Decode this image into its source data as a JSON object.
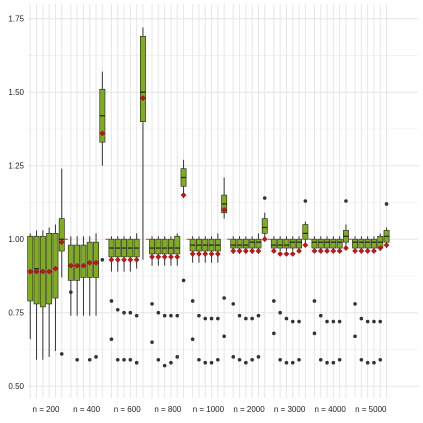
{
  "chart_data": {
    "type": "boxplot",
    "title": "",
    "xlabel": "",
    "ylabel": "",
    "ylim": [
      0.46,
      1.8
    ],
    "y_ticks": [
      0.5,
      0.75,
      1.0,
      1.25,
      1.5,
      1.75
    ],
    "y_tick_labels": [
      "0.50",
      "0.75",
      "1.00",
      "1.25",
      "1.50",
      "1.75"
    ],
    "reference_line": 1.0,
    "grid": true,
    "legend": "none",
    "boxes_per_group": 6,
    "colors": {
      "box": "#7fae1a",
      "whisker": "#333333",
      "median": "#222222",
      "mean_marker": "#cc1111",
      "reference": "#dd2222",
      "outlier": "#333333",
      "grid": "#e6e6e6"
    },
    "groups": [
      {
        "label": "n = 200",
        "boxes": [
          {
            "min": 0.66,
            "q1": 0.79,
            "median": 0.89,
            "q3": 1.01,
            "max": 1.02,
            "mean": 0.89,
            "outliers": []
          },
          {
            "min": 0.59,
            "q1": 0.78,
            "median": 0.9,
            "q3": 1.01,
            "max": 1.03,
            "mean": 0.89,
            "outliers": []
          },
          {
            "min": 0.59,
            "q1": 0.77,
            "median": 0.89,
            "q3": 1.01,
            "max": 1.03,
            "mean": 0.89,
            "outliers": []
          },
          {
            "min": 0.6,
            "q1": 0.78,
            "median": 0.89,
            "q3": 1.02,
            "max": 1.04,
            "mean": 0.89,
            "outliers": []
          },
          {
            "min": 0.62,
            "q1": 0.8,
            "median": 0.9,
            "q3": 1.02,
            "max": 1.05,
            "mean": 0.9,
            "outliers": []
          },
          {
            "min": 0.87,
            "q1": 0.96,
            "median": 1.0,
            "q3": 1.07,
            "max": 1.24,
            "mean": 0.99,
            "outliers": [
              0.61
            ]
          }
        ]
      },
      {
        "label": "n = 400",
        "boxes": [
          {
            "min": 0.74,
            "q1": 0.86,
            "median": 0.91,
            "q3": 0.98,
            "max": 1.01,
            "mean": 0.91,
            "outliers": [
              0.82
            ]
          },
          {
            "min": 0.74,
            "q1": 0.86,
            "median": 0.91,
            "q3": 0.98,
            "max": 1.01,
            "mean": 0.91,
            "outliers": [
              0.59
            ]
          },
          {
            "min": 0.74,
            "q1": 0.87,
            "median": 0.91,
            "q3": 0.98,
            "max": 1.01,
            "mean": 0.91,
            "outliers": []
          },
          {
            "min": 0.74,
            "q1": 0.87,
            "median": 0.92,
            "q3": 0.99,
            "max": 1.01,
            "mean": 0.92,
            "outliers": [
              0.59
            ]
          },
          {
            "min": 0.74,
            "q1": 0.87,
            "median": 0.92,
            "q3": 0.99,
            "max": 1.02,
            "mean": 0.92,
            "outliers": [
              0.6
            ]
          },
          {
            "min": 1.25,
            "q1": 1.33,
            "median": 1.42,
            "q3": 1.51,
            "max": 1.57,
            "mean": 1.36,
            "outliers": [
              0.93
            ]
          }
        ]
      },
      {
        "label": "n = 600",
        "boxes": [
          {
            "min": 0.89,
            "q1": 0.94,
            "median": 0.97,
            "q3": 1.0,
            "max": 1.01,
            "mean": 0.93,
            "outliers": [
              0.79,
              0.66
            ]
          },
          {
            "min": 0.89,
            "q1": 0.94,
            "median": 0.97,
            "q3": 1.0,
            "max": 1.01,
            "mean": 0.93,
            "outliers": [
              0.76,
              0.59
            ]
          },
          {
            "min": 0.89,
            "q1": 0.94,
            "median": 0.97,
            "q3": 1.0,
            "max": 1.01,
            "mean": 0.93,
            "outliers": [
              0.75,
              0.59
            ]
          },
          {
            "min": 0.89,
            "q1": 0.94,
            "median": 0.97,
            "q3": 1.0,
            "max": 1.01,
            "mean": 0.93,
            "outliers": [
              0.75,
              0.59
            ]
          },
          {
            "min": 0.9,
            "q1": 0.94,
            "median": 0.97,
            "q3": 1.0,
            "max": 1.02,
            "mean": 0.93,
            "outliers": [
              0.74,
              0.58
            ]
          },
          {
            "min": 0.93,
            "q1": 1.4,
            "median": 1.5,
            "q3": 1.69,
            "max": 1.72,
            "mean": 1.48,
            "outliers": []
          }
        ]
      },
      {
        "label": "n = 800",
        "boxes": [
          {
            "min": 0.91,
            "q1": 0.95,
            "median": 0.97,
            "q3": 1.0,
            "max": 1.01,
            "mean": 0.94,
            "outliers": [
              0.78,
              0.65
            ]
          },
          {
            "min": 0.91,
            "q1": 0.95,
            "median": 0.97,
            "q3": 1.0,
            "max": 1.01,
            "mean": 0.94,
            "outliers": [
              0.75,
              0.59
            ]
          },
          {
            "min": 0.91,
            "q1": 0.95,
            "median": 0.97,
            "q3": 1.0,
            "max": 1.01,
            "mean": 0.94,
            "outliers": [
              0.74,
              0.57
            ]
          },
          {
            "min": 0.91,
            "q1": 0.95,
            "median": 0.97,
            "q3": 1.0,
            "max": 1.01,
            "mean": 0.94,
            "outliers": [
              0.74,
              0.58
            ]
          },
          {
            "min": 0.91,
            "q1": 0.95,
            "median": 0.97,
            "q3": 1.01,
            "max": 1.02,
            "mean": 0.94,
            "outliers": [
              0.74,
              0.6
            ]
          },
          {
            "min": 1.14,
            "q1": 1.18,
            "median": 1.21,
            "q3": 1.24,
            "max": 1.27,
            "mean": 1.15,
            "outliers": [
              0.86
            ]
          }
        ]
      },
      {
        "label": "n = 1000",
        "boxes": [
          {
            "min": 0.92,
            "q1": 0.96,
            "median": 0.98,
            "q3": 1.0,
            "max": 1.01,
            "mean": 0.95,
            "outliers": [
              0.79,
              0.66
            ]
          },
          {
            "min": 0.92,
            "q1": 0.96,
            "median": 0.98,
            "q3": 1.0,
            "max": 1.01,
            "mean": 0.95,
            "outliers": [
              0.74,
              0.59
            ]
          },
          {
            "min": 0.92,
            "q1": 0.96,
            "median": 0.98,
            "q3": 1.0,
            "max": 1.01,
            "mean": 0.95,
            "outliers": [
              0.73,
              0.58
            ]
          },
          {
            "min": 0.92,
            "q1": 0.96,
            "median": 0.98,
            "q3": 1.0,
            "max": 1.01,
            "mean": 0.95,
            "outliers": [
              0.73,
              0.58
            ]
          },
          {
            "min": 0.92,
            "q1": 0.96,
            "median": 0.98,
            "q3": 1.0,
            "max": 1.02,
            "mean": 0.95,
            "outliers": [
              0.73,
              0.59
            ]
          },
          {
            "min": 1.07,
            "q1": 1.09,
            "median": 1.12,
            "q3": 1.15,
            "max": 1.21,
            "mean": 1.1,
            "outliers": [
              0.8,
              0.67
            ]
          }
        ]
      },
      {
        "label": "n = 2000",
        "boxes": [
          {
            "min": 0.95,
            "q1": 0.97,
            "median": 0.98,
            "q3": 1.0,
            "max": 1.01,
            "mean": 0.96,
            "outliers": [
              0.78,
              0.6
            ]
          },
          {
            "min": 0.95,
            "q1": 0.97,
            "median": 0.98,
            "q3": 1.0,
            "max": 1.01,
            "mean": 0.96,
            "outliers": [
              0.74,
              0.59
            ]
          },
          {
            "min": 0.95,
            "q1": 0.97,
            "median": 0.98,
            "q3": 1.0,
            "max": 1.01,
            "mean": 0.96,
            "outliers": [
              0.73,
              0.58
            ]
          },
          {
            "min": 0.95,
            "q1": 0.97,
            "median": 0.99,
            "q3": 1.0,
            "max": 1.01,
            "mean": 0.96,
            "outliers": [
              0.73,
              0.59
            ]
          },
          {
            "min": 0.95,
            "q1": 0.97,
            "median": 0.99,
            "q3": 1.0,
            "max": 1.02,
            "mean": 0.96,
            "outliers": [
              0.74,
              0.6
            ]
          },
          {
            "min": 1.0,
            "q1": 1.02,
            "median": 1.04,
            "q3": 1.07,
            "max": 1.09,
            "mean": 1.0,
            "outliers": [
              1.14
            ]
          }
        ]
      },
      {
        "label": "n = 3000",
        "boxes": [
          {
            "min": 0.96,
            "q1": 0.97,
            "median": 0.98,
            "q3": 1.0,
            "max": 1.01,
            "mean": 0.96,
            "outliers": [
              0.79,
              0.68
            ]
          },
          {
            "min": 0.96,
            "q1": 0.97,
            "median": 0.98,
            "q3": 1.0,
            "max": 1.01,
            "mean": 0.95,
            "outliers": [
              0.75,
              0.59
            ]
          },
          {
            "min": 0.96,
            "q1": 0.97,
            "median": 0.98,
            "q3": 1.0,
            "max": 1.01,
            "mean": 0.95,
            "outliers": [
              0.73,
              0.58
            ]
          },
          {
            "min": 0.96,
            "q1": 0.97,
            "median": 0.99,
            "q3": 1.0,
            "max": 1.01,
            "mean": 0.95,
            "outliers": [
              0.72,
              0.58
            ]
          },
          {
            "min": 0.96,
            "q1": 0.97,
            "median": 0.99,
            "q3": 1.0,
            "max": 1.01,
            "mean": 0.96,
            "outliers": [
              0.72,
              0.59
            ]
          },
          {
            "min": 0.98,
            "q1": 1.0,
            "median": 1.02,
            "q3": 1.05,
            "max": 1.06,
            "mean": 0.98,
            "outliers": [
              1.13
            ]
          }
        ]
      },
      {
        "label": "n = 4000",
        "boxes": [
          {
            "min": 0.96,
            "q1": 0.97,
            "median": 0.99,
            "q3": 1.0,
            "max": 1.01,
            "mean": 0.96,
            "outliers": [
              0.79,
              0.68
            ]
          },
          {
            "min": 0.96,
            "q1": 0.97,
            "median": 0.99,
            "q3": 1.0,
            "max": 1.01,
            "mean": 0.96,
            "outliers": [
              0.74,
              0.59
            ]
          },
          {
            "min": 0.96,
            "q1": 0.97,
            "median": 0.99,
            "q3": 1.0,
            "max": 1.01,
            "mean": 0.96,
            "outliers": [
              0.72,
              0.58
            ]
          },
          {
            "min": 0.96,
            "q1": 0.97,
            "median": 0.99,
            "q3": 1.0,
            "max": 1.01,
            "mean": 0.96,
            "outliers": [
              0.72,
              0.58
            ]
          },
          {
            "min": 0.96,
            "q1": 0.97,
            "median": 0.99,
            "q3": 1.0,
            "max": 1.01,
            "mean": 0.96,
            "outliers": [
              0.72,
              0.59
            ]
          },
          {
            "min": 0.97,
            "q1": 0.99,
            "median": 1.01,
            "q3": 1.03,
            "max": 1.05,
            "mean": 0.97,
            "outliers": [
              1.13
            ]
          }
        ]
      },
      {
        "label": "n = 5000",
        "boxes": [
          {
            "min": 0.96,
            "q1": 0.97,
            "median": 0.99,
            "q3": 1.0,
            "max": 1.01,
            "mean": 0.96,
            "outliers": [
              0.78,
              0.67
            ]
          },
          {
            "min": 0.96,
            "q1": 0.97,
            "median": 0.99,
            "q3": 1.0,
            "max": 1.01,
            "mean": 0.96,
            "outliers": [
              0.73,
              0.59
            ]
          },
          {
            "min": 0.96,
            "q1": 0.97,
            "median": 0.99,
            "q3": 1.0,
            "max": 1.01,
            "mean": 0.96,
            "outliers": [
              0.72,
              0.58
            ]
          },
          {
            "min": 0.96,
            "q1": 0.97,
            "median": 0.99,
            "q3": 1.0,
            "max": 1.01,
            "mean": 0.96,
            "outliers": [
              0.72,
              0.58
            ]
          },
          {
            "min": 0.96,
            "q1": 0.97,
            "median": 0.99,
            "q3": 1.01,
            "max": 1.02,
            "mean": 0.97,
            "outliers": [
              0.72,
              0.59
            ]
          },
          {
            "min": 0.97,
            "q1": 0.99,
            "median": 1.01,
            "q3": 1.03,
            "max": 1.04,
            "mean": 0.98,
            "outliers": [
              1.12
            ]
          }
        ]
      }
    ]
  }
}
